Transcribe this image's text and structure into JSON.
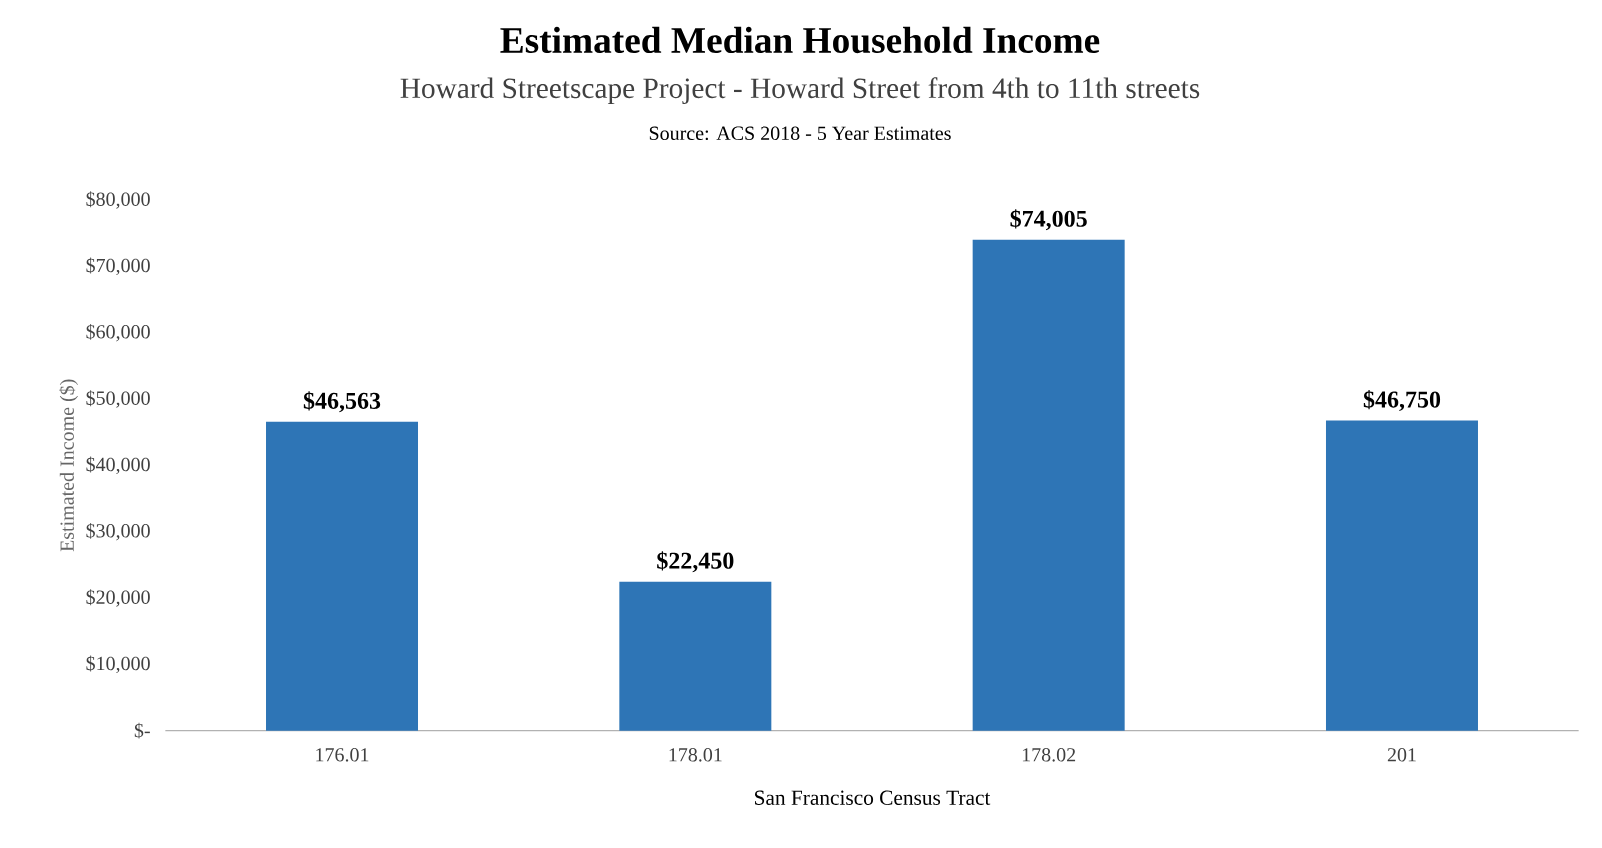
{
  "chart_data": {
    "type": "bar",
    "title": "Estimated Median Household Income",
    "subtitle": "Howard Streetscape Project - Howard Street from 4th to 11th streets",
    "annotations": [
      "Source: ACS 2018 - 5 Year Estimates"
    ],
    "xlabel": "San Francisco Census Tract",
    "ylabel": "Estimated Income ($)",
    "categories": [
      "176.01",
      "178.01",
      "178.02",
      "201"
    ],
    "values": [
      46563,
      22450,
      74005,
      46750
    ],
    "value_labels": [
      "$46,563",
      "$22,450",
      "$74,005",
      "$46,750"
    ],
    "color": "#2e75b6",
    "ylim": [
      0,
      80000
    ],
    "yticks": [
      {
        "value": 0,
        "label": "$-"
      },
      {
        "value": 10000,
        "label": "$10,000"
      },
      {
        "value": 20000,
        "label": "$20,000"
      },
      {
        "value": 30000,
        "label": "$30,000"
      },
      {
        "value": 40000,
        "label": "$40,000"
      },
      {
        "value": 50000,
        "label": "$50,000"
      },
      {
        "value": 60000,
        "label": "$60,000"
      },
      {
        "value": 70000,
        "label": "$70,000"
      },
      {
        "value": 80000,
        "label": "$80,000"
      }
    ]
  }
}
